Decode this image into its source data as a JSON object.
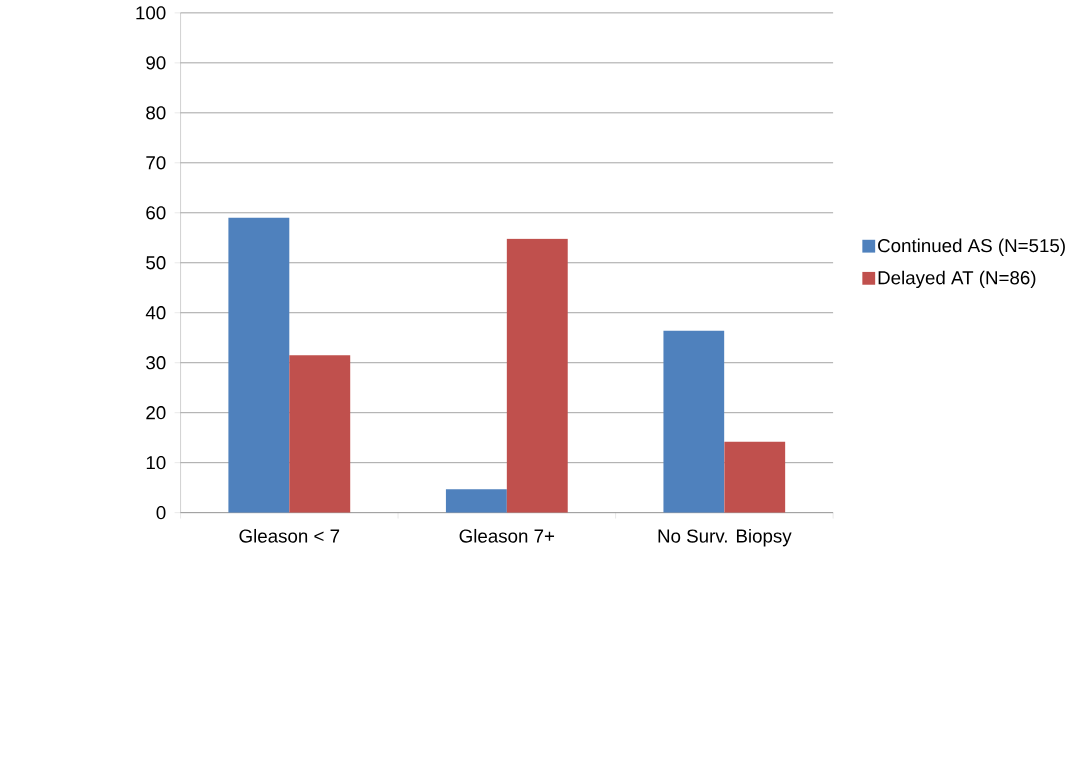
{
  "chart_data": {
    "type": "bar",
    "categories": [
      "Gleason < 7",
      "Gleason 7+",
      "No Surv. Biopsy"
    ],
    "series": [
      {
        "name": "Continued AS (N=515)",
        "color": "#4f81bd",
        "values": [
          59,
          4.7,
          36.4
        ]
      },
      {
        "name": "Delayed AT (N=86)",
        "color": "#c0504d",
        "values": [
          31.5,
          54.8,
          14.2
        ]
      }
    ],
    "ylim": [
      0,
      100
    ],
    "yticks": [
      0,
      10,
      20,
      30,
      40,
      50,
      60,
      70,
      80,
      90,
      100
    ],
    "grid": "y",
    "legend": "right"
  }
}
